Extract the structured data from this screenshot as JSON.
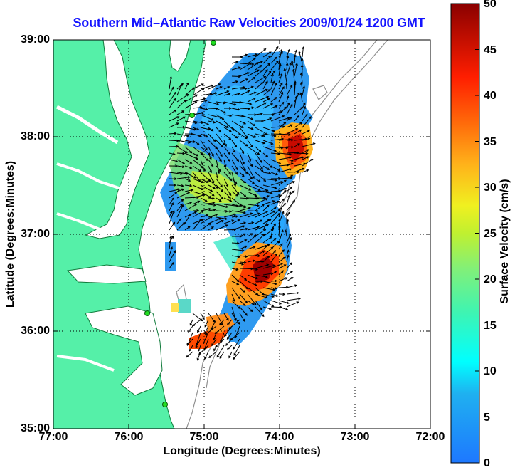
{
  "title": "Southern Mid–Atlantic Raw Velocities 2009/01/24 1200 GMT",
  "chart_data": {
    "type": "heatmap",
    "xlabel": "Longitude (Degrees:Minutes)",
    "ylabel": "Latitude (Degrees:Minutes)",
    "xlim": [
      -77,
      -72
    ],
    "ylim": [
      35,
      39
    ],
    "x_ticks": [
      "77:00",
      "76:00",
      "75:00",
      "74:00",
      "73:00",
      "72:00"
    ],
    "y_ticks": [
      "39:00",
      "38:00",
      "37:00",
      "36:00",
      "35:00"
    ],
    "colorbar": {
      "label": "Surface Velocity (cm/s)",
      "range": [
        0,
        50
      ],
      "ticks": [
        "50",
        "45",
        "40",
        "35",
        "30",
        "25",
        "20",
        "15",
        "10",
        "5",
        "0"
      ]
    },
    "grid": true,
    "colors": {
      "land": "#55f0a8",
      "coast": "#0f7a3a",
      "bathymetry": "#909090",
      "station": "#22dd22",
      "vector": "#000000"
    }
  }
}
